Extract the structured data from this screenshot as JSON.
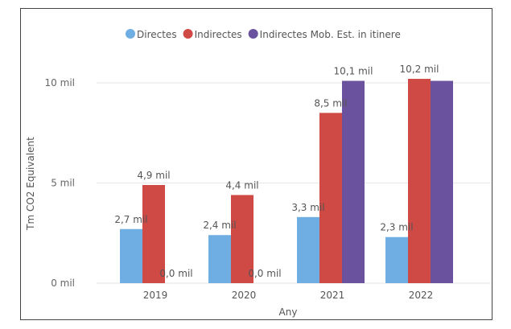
{
  "chart_data": {
    "type": "bar",
    "title": "",
    "xlabel": "Any",
    "ylabel": "Tm CO2 Equivalent",
    "categories": [
      "2019",
      "2020",
      "2021",
      "2022"
    ],
    "series": [
      {
        "name": "Directes",
        "color": "#6FAEE2",
        "values": [
          2.7,
          2.4,
          3.3,
          2.3
        ],
        "labels": [
          "2,7 mil",
          "2,4 mil",
          "3,3 mil",
          "2,3 mil"
        ]
      },
      {
        "name": "Indirectes",
        "color": "#CF4A45",
        "values": [
          4.9,
          4.4,
          8.5,
          10.2
        ],
        "labels": [
          "4,9 mil",
          "4,4 mil",
          "8,5 mil",
          "10,2 mil"
        ]
      },
      {
        "name": "Indirectes Mob. Est. in itinere",
        "color": "#6A529E",
        "values": [
          0.0,
          0.0,
          10.1,
          10.1
        ],
        "labels": [
          "0,0 mil",
          "0,0 mil",
          "10,1 mil",
          ""
        ]
      }
    ],
    "yticks": [
      0,
      5,
      10
    ],
    "ytick_labels": [
      "0 mil",
      "5 mil",
      "10 mil"
    ],
    "ylim": [
      0,
      10.3
    ],
    "unit": "mil",
    "grid": true,
    "legend": "top-center"
  }
}
